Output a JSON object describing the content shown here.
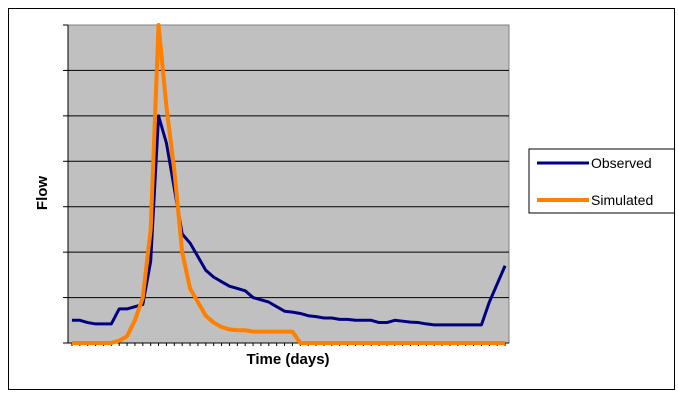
{
  "chart_data": {
    "type": "line",
    "title": "",
    "xlabel": "Time (days)",
    "ylabel": "Flow",
    "x": [
      1,
      2,
      3,
      4,
      5,
      6,
      7,
      8,
      9,
      10,
      11,
      12,
      13,
      14,
      15,
      16,
      17,
      18,
      19,
      20,
      21,
      22,
      23,
      24,
      25,
      26,
      27,
      28,
      29,
      30,
      31,
      32,
      33,
      34,
      35,
      36,
      37,
      38,
      39,
      40,
      41,
      42,
      43,
      44,
      45,
      46,
      47,
      48,
      49,
      50,
      51,
      52,
      53,
      54,
      55,
      56
    ],
    "xlim": [
      0.5,
      56.5
    ],
    "ylim": [
      0,
      7
    ],
    "grid": true,
    "legend_position": "right",
    "series": [
      {
        "name": "Observed",
        "color": "#000080",
        "values": [
          0.5,
          0.5,
          0.45,
          0.42,
          0.42,
          0.42,
          0.75,
          0.75,
          0.8,
          0.85,
          1.8,
          5.0,
          4.4,
          3.4,
          2.4,
          2.2,
          1.9,
          1.6,
          1.45,
          1.35,
          1.25,
          1.2,
          1.15,
          1.0,
          0.95,
          0.9,
          0.8,
          0.7,
          0.68,
          0.65,
          0.6,
          0.58,
          0.55,
          0.55,
          0.52,
          0.52,
          0.5,
          0.5,
          0.5,
          0.45,
          0.45,
          0.5,
          0.48,
          0.46,
          0.45,
          0.42,
          0.4,
          0.4,
          0.4,
          0.4,
          0.4,
          0.4,
          0.4,
          0.9,
          1.3,
          1.7
        ]
      },
      {
        "name": "Simulated",
        "color": "#FF7F00",
        "values": [
          0,
          0,
          0,
          0,
          0,
          0,
          0.05,
          0.15,
          0.5,
          1.0,
          2.5,
          7.0,
          5.2,
          3.8,
          2.0,
          1.2,
          0.9,
          0.6,
          0.45,
          0.35,
          0.3,
          0.28,
          0.28,
          0.25,
          0.25,
          0.25,
          0.25,
          0.25,
          0.25,
          0,
          0,
          0,
          0,
          0,
          0,
          0,
          0,
          0,
          0,
          0,
          0,
          0,
          0,
          0,
          0,
          0,
          0,
          0,
          0,
          0,
          0,
          0,
          0,
          0,
          0,
          0
        ]
      }
    ]
  }
}
